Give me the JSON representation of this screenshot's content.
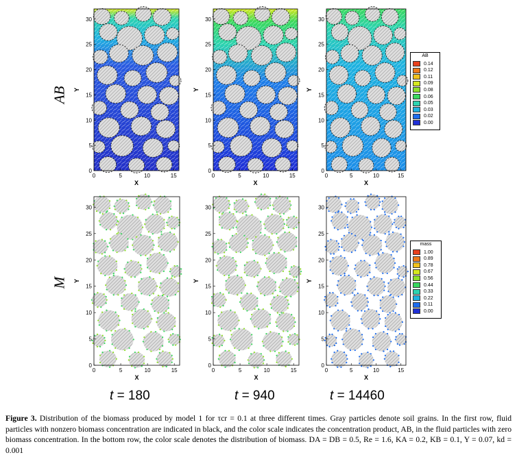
{
  "figure": {
    "axes": {
      "xlabel": "X",
      "ylabel": "Y",
      "x_ticks": [
        "0",
        "5",
        "10",
        "15"
      ],
      "y_ticks": [
        "0",
        "5",
        "10",
        "15",
        "20",
        "25",
        "30"
      ]
    },
    "row_labels": [
      "AB",
      "M"
    ],
    "time_labels": [
      {
        "var": "t",
        "value": "= 180"
      },
      {
        "var": "t",
        "value": "= 940"
      },
      {
        "var": "t",
        "value": "= 14460"
      }
    ],
    "legend_ab": {
      "title": "AB",
      "levels": [
        "0.14",
        "0.12",
        "0.11",
        "0.09",
        "0.08",
        "0.06",
        "0.05",
        "0.03",
        "0.02",
        "0.00"
      ],
      "colors": [
        "#e8401c",
        "#f07a1a",
        "#f2c21c",
        "#d6e81f",
        "#8fe02a",
        "#3ad85e",
        "#2dd3b0",
        "#1fb2e0",
        "#1d6df0",
        "#1f2fd6"
      ]
    },
    "legend_m": {
      "title": "mass",
      "levels": [
        "1.00",
        "0.89",
        "0.78",
        "0.67",
        "0.56",
        "0.44",
        "0.33",
        "0.22",
        "0.11",
        "0.00"
      ],
      "colors": [
        "#e8401c",
        "#f07a1a",
        "#f2c21c",
        "#d6e81f",
        "#8fe02a",
        "#3ad85e",
        "#2dd3b0",
        "#1fb2e0",
        "#1d6df0",
        "#1f2fd6"
      ]
    }
  },
  "caption": {
    "label": "Figure 3.",
    "text": "Distribution of the biomass produced by model 1 for τcr = 0.1 at three different times. Gray particles denote soil grains. In the first row, fluid particles with nonzero biomass concentration are indicated in black, and the color scale indicates the concentration product, AB, in the fluid particles with zero biomass concentration. In the bottom row, the color scale denotes the distribution of biomass. DA = DB = 0.5, Re = 1.6, KA = 0.2, KB = 0.1, Y = 0.07, kd = 0.001"
  }
}
